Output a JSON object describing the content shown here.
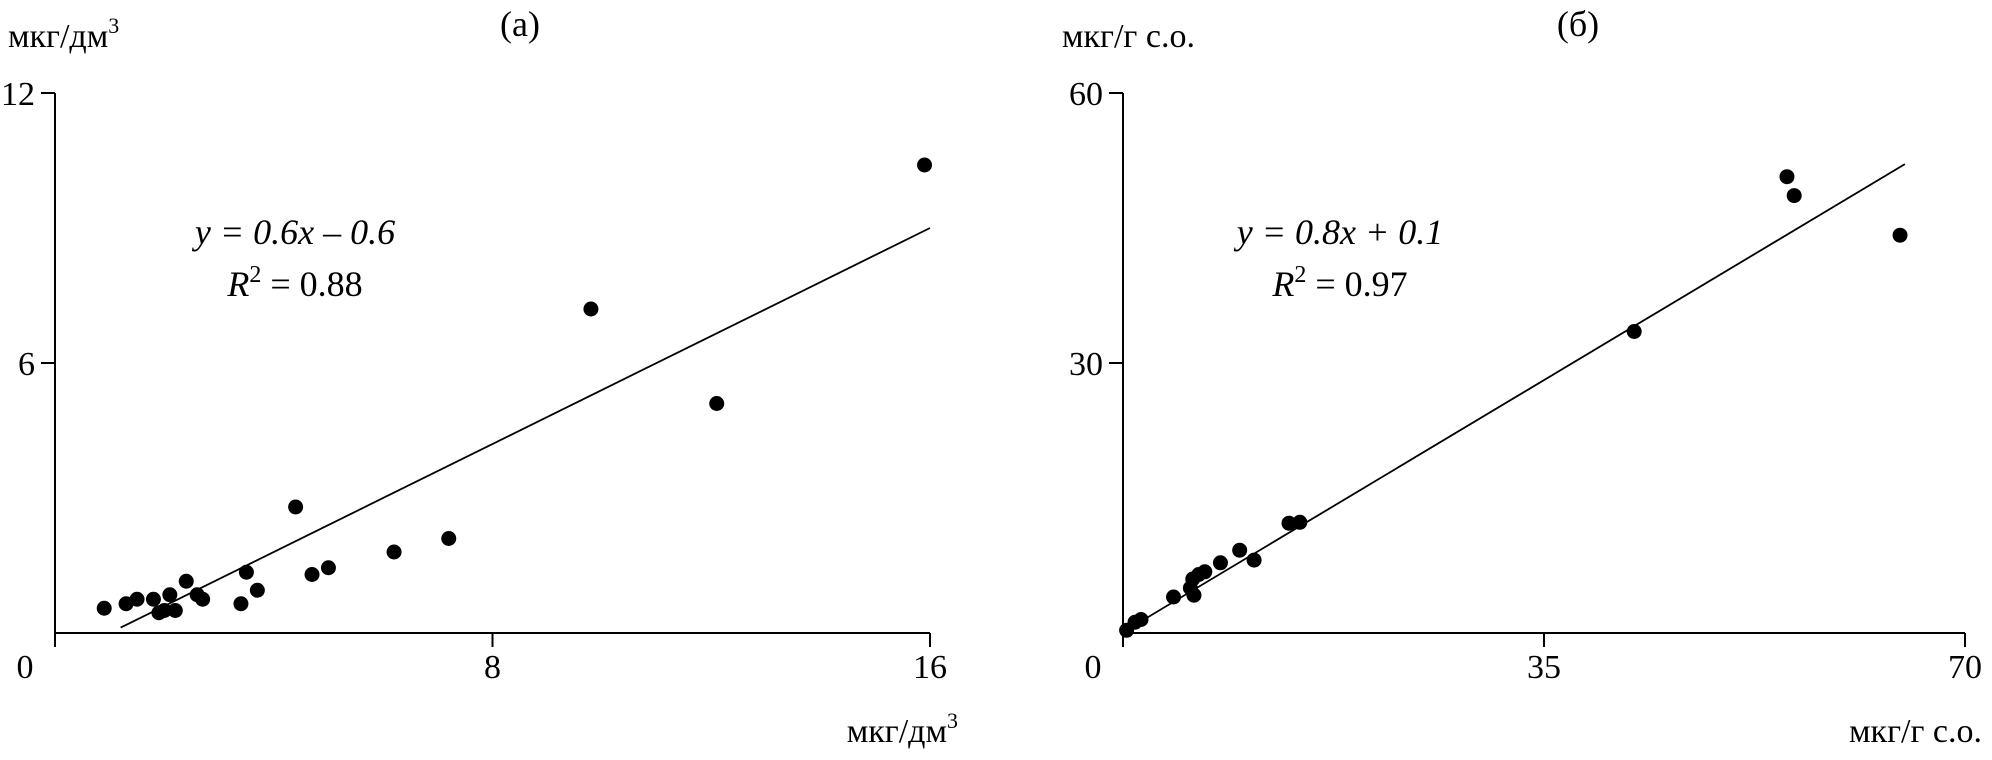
{
  "chart_data": [
    {
      "type": "scatter",
      "panel_label": "(a)",
      "ylabel_base": "мкг/дм",
      "ylabel_sup": "3",
      "xlabel_base": "мкг/дм",
      "xlabel_sup": "3",
      "xlim": [
        0,
        16
      ],
      "ylim": [
        0,
        12
      ],
      "xticks": [
        "0",
        "8",
        "16"
      ],
      "xtick_values": [
        0,
        8,
        16
      ],
      "yticks": [
        "6",
        "12"
      ],
      "ytick_values": [
        6,
        12
      ],
      "equation": "y = 0.6x – 0.6",
      "r2_label": "R",
      "r2_sup": "2",
      "r2_value": " = 0.88",
      "trendline": {
        "slope": 0.6,
        "intercept": -0.6,
        "x_range": [
          1.2,
          16
        ]
      },
      "points": [
        [
          0.9,
          0.55
        ],
        [
          1.3,
          0.65
        ],
        [
          1.5,
          0.75
        ],
        [
          1.8,
          0.75
        ],
        [
          1.9,
          0.45
        ],
        [
          2.0,
          0.5
        ],
        [
          2.1,
          0.85
        ],
        [
          2.2,
          0.5
        ],
        [
          2.4,
          1.15
        ],
        [
          2.6,
          0.85
        ],
        [
          2.7,
          0.75
        ],
        [
          3.4,
          0.65
        ],
        [
          3.5,
          1.35
        ],
        [
          3.7,
          0.95
        ],
        [
          4.4,
          2.8
        ],
        [
          4.7,
          1.3
        ],
        [
          5.0,
          1.45
        ],
        [
          6.2,
          1.8
        ],
        [
          7.2,
          2.1
        ],
        [
          9.8,
          7.2
        ],
        [
          12.1,
          5.1
        ],
        [
          15.9,
          10.4
        ]
      ]
    },
    {
      "type": "scatter",
      "panel_label": "(б)",
      "ylabel_base": "мкг/г с.о.",
      "xlabel_base": "мкг/г с.о.",
      "xlim": [
        0,
        70
      ],
      "ylim": [
        0,
        60
      ],
      "xticks": [
        "0",
        "35",
        "70"
      ],
      "xtick_values": [
        0,
        35,
        70
      ],
      "yticks": [
        "30",
        "60"
      ],
      "ytick_values": [
        30,
        60
      ],
      "equation": "y = 0.8x + 0.1",
      "r2_label": "R",
      "r2_sup": "2",
      "r2_value": " = 0.97",
      "trendline": {
        "slope": 0.8,
        "intercept": 0.1,
        "x_range": [
          0,
          65
        ]
      },
      "points": [
        [
          0.3,
          0.3
        ],
        [
          1.0,
          1.2
        ],
        [
          1.5,
          1.5
        ],
        [
          4.2,
          4.0
        ],
        [
          5.6,
          5.0
        ],
        [
          5.8,
          6.0
        ],
        [
          5.9,
          4.2
        ],
        [
          6.3,
          6.5
        ],
        [
          6.8,
          6.8
        ],
        [
          8.1,
          7.8
        ],
        [
          9.7,
          9.2
        ],
        [
          10.9,
          8.1
        ],
        [
          13.8,
          12.2
        ],
        [
          14.7,
          12.3
        ],
        [
          42.5,
          33.5
        ],
        [
          55.2,
          50.7
        ],
        [
          55.8,
          48.6
        ],
        [
          64.6,
          44.2
        ]
      ]
    }
  ]
}
